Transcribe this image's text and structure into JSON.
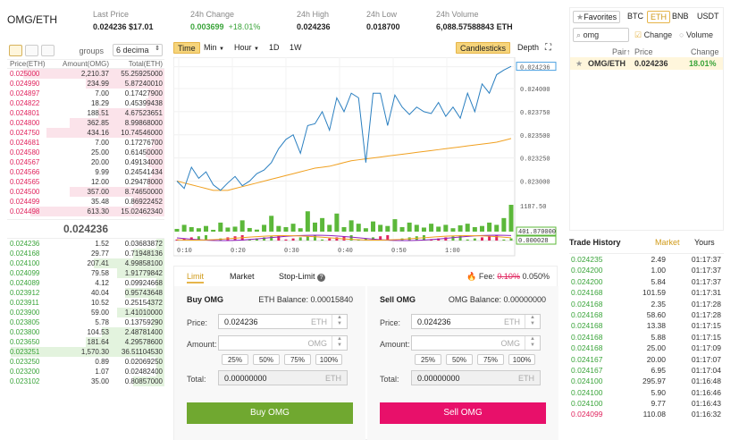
{
  "header": {
    "pair": "OMG/ETH",
    "last_price_label": "Last Price",
    "last_price": "0.024236 $17.01",
    "change_label": "24h Change",
    "change_value": "0.003699",
    "change_pct": "+18.01%",
    "high_label": "24h High",
    "high_value": "0.024236",
    "low_label": "24h Low",
    "low_value": "0.018700",
    "volume_label": "24h Volume",
    "volume_value": "6,088.57588843 ETH"
  },
  "orderbook": {
    "groups_label": "groups",
    "decimals_value": "6 decima",
    "col_price": "Price(ETH)",
    "col_amount": "Amount(OMG)",
    "col_total": "Total(ETH)",
    "asks": [
      [
        "0.025000",
        "2,210.37",
        "55.25925000"
      ],
      [
        "0.024990",
        "234.99",
        "5.87240010"
      ],
      [
        "0.024897",
        "7.00",
        "0.17427900"
      ],
      [
        "0.024822",
        "18.29",
        "0.45399438"
      ],
      [
        "0.024801",
        "188.51",
        "4.67523651"
      ],
      [
        "0.024800",
        "362.85",
        "8.99868000"
      ],
      [
        "0.024750",
        "434.16",
        "10.74546000"
      ],
      [
        "0.024681",
        "7.00",
        "0.17276700"
      ],
      [
        "0.024580",
        "25.00",
        "0.61450000"
      ],
      [
        "0.024567",
        "20.00",
        "0.49134000"
      ],
      [
        "0.024566",
        "9.99",
        "0.24541434"
      ],
      [
        "0.024565",
        "12.00",
        "0.29478000"
      ],
      [
        "0.024500",
        "357.00",
        "8.74650000"
      ],
      [
        "0.024499",
        "35.48",
        "0.86922452"
      ],
      [
        "0.024498",
        "613.30",
        "15.02462340"
      ]
    ],
    "ask_fill": [
      0.9,
      0.5,
      0.1,
      0.12,
      0.42,
      0.6,
      0.75,
      0.08,
      0.12,
      0.1,
      0.08,
      0.1,
      0.6,
      0.2,
      0.85
    ],
    "last_price": "0.024236",
    "bids": [
      [
        "0.024236",
        "1.52",
        "0.03683872"
      ],
      [
        "0.024168",
        "29.77",
        "0.71948136"
      ],
      [
        "0.024100",
        "207.41",
        "4.99858100"
      ],
      [
        "0.024099",
        "79.58",
        "1.91779842"
      ],
      [
        "0.024089",
        "4.12",
        "0.09924668"
      ],
      [
        "0.023912",
        "40.04",
        "0.95743648"
      ],
      [
        "0.023911",
        "10.52",
        "0.25154372"
      ],
      [
        "0.023900",
        "59.00",
        "1.41010000"
      ],
      [
        "0.023805",
        "5.78",
        "0.13759290"
      ],
      [
        "0.023800",
        "104.53",
        "2.48781400"
      ],
      [
        "0.023650",
        "181.64",
        "4.29578600"
      ],
      [
        "0.023251",
        "1,570.30",
        "36.51104530"
      ],
      [
        "0.023250",
        "0.89",
        "0.02069250"
      ],
      [
        "0.023200",
        "1.07",
        "0.02482400"
      ],
      [
        "0.023102",
        "35.00",
        "0.80857000"
      ]
    ],
    "bid_fill": [
      0.05,
      0.2,
      0.45,
      0.3,
      0.05,
      0.25,
      0.1,
      0.3,
      0.08,
      0.4,
      0.5,
      0.98,
      0.05,
      0.05,
      0.2
    ]
  },
  "chart": {
    "tabs": [
      "Time",
      "Min",
      "Hour",
      "1D",
      "1W"
    ],
    "view_candles": "Candlesticks",
    "view_depth": "Depth",
    "price_ticks": [
      "0.024236",
      "0.024000",
      "0.023750",
      "0.023500",
      "0.023250",
      "0.023000"
    ],
    "volume_tick": "1187.50",
    "volume_current": "401.870000",
    "macd_current": "0.000028",
    "time_ticks": [
      "0:10",
      "0:20",
      "0:30",
      "0:40",
      "0:50",
      "1:00"
    ],
    "price_series": [
      0.023,
      0.02292,
      0.02315,
      0.02303,
      0.0231,
      0.02296,
      0.0229,
      0.02298,
      0.02305,
      0.02295,
      0.023,
      0.02308,
      0.02312,
      0.0232,
      0.02335,
      0.02345,
      0.0235,
      0.0233,
      0.0236,
      0.02362,
      0.02375,
      0.02355,
      0.0239,
      0.02375,
      0.02395,
      0.0239,
      0.0232,
      0.02395,
      0.02395,
      0.0236,
      0.02393,
      0.0238,
      0.02372,
      0.0238,
      0.02375,
      0.02373,
      0.02385,
      0.0237,
      0.0238,
      0.02368,
      0.02395,
      0.02375,
      0.02405,
      0.02395,
      0.02415,
      0.0242,
      0.02424
    ],
    "avg_series": [
      0.023,
      0.02298,
      0.02296,
      0.02294,
      0.02292,
      0.0229,
      0.0229,
      0.0229,
      0.02292,
      0.02294,
      0.02296,
      0.02298,
      0.023,
      0.02302,
      0.02304,
      0.02306,
      0.02308,
      0.0231,
      0.02312,
      0.02314,
      0.02315,
      0.02316,
      0.02318,
      0.0232,
      0.02322,
      0.02323,
      0.02324,
      0.02325,
      0.02326,
      0.02327,
      0.02328,
      0.02329,
      0.0233,
      0.02331,
      0.02332,
      0.02333,
      0.02334,
      0.02335,
      0.02336,
      0.02337,
      0.02338,
      0.02339,
      0.0234,
      0.02341,
      0.02342,
      0.02344,
      0.02346
    ],
    "volumes": [
      120,
      300,
      200,
      150,
      250,
      80,
      400,
      180,
      220,
      500,
      160,
      90,
      300,
      700,
      250,
      200,
      350,
      150,
      900,
      400,
      600,
      300,
      800,
      200,
      500,
      350,
      150,
      450,
      300,
      250,
      550,
      200,
      400,
      300,
      180,
      350,
      220,
      300,
      150,
      280,
      350,
      200,
      250,
      400,
      300,
      600,
      1187
    ]
  },
  "trade": {
    "tab_limit": "Limit",
    "tab_market": "Market",
    "tab_stoplimit": "Stop-Limit",
    "fee_label": "Fee:",
    "fee_old": "0.10%",
    "fee_new": "0.050%",
    "buy_title": "Buy OMG",
    "buy_balance": "ETH Balance: 0.00015840",
    "sell_title": "Sell OMG",
    "sell_balance": "OMG Balance: 0.00000000",
    "price_label": "Price:",
    "amount_label": "Amount:",
    "total_label": "Total:",
    "buy_price": "0.024236",
    "sell_price": "0.024236",
    "unit_eth": "ETH",
    "unit_omg": "OMG",
    "buy_total": "0.00000000",
    "sell_total": "0.00000000",
    "pcts": [
      "25%",
      "50%",
      "75%",
      "100%"
    ],
    "buy_button": "Buy OMG",
    "sell_button": "Sell OMG"
  },
  "markets": {
    "favorites": "Favorites",
    "tabs": [
      "BTC",
      "ETH",
      "BNB",
      "USDT"
    ],
    "search_value": "omg",
    "change_label": "Change",
    "volume_label": "Volume",
    "col_pair": "Pair",
    "col_price": "Price",
    "col_change": "Change",
    "row_pair": "OMG/ETH",
    "row_price": "0.024236",
    "row_change": "18.01%"
  },
  "history": {
    "title": "Trade History",
    "tab_market": "Market",
    "tab_yours": "Yours",
    "rows": [
      [
        "0.024235",
        "2.49",
        "01:17:37",
        "g"
      ],
      [
        "0.024200",
        "1.00",
        "01:17:37",
        "g"
      ],
      [
        "0.024200",
        "5.84",
        "01:17:37",
        "g"
      ],
      [
        "0.024168",
        "101.59",
        "01:17:31",
        "g"
      ],
      [
        "0.024168",
        "2.35",
        "01:17:28",
        "g"
      ],
      [
        "0.024168",
        "58.60",
        "01:17:28",
        "g"
      ],
      [
        "0.024168",
        "13.38",
        "01:17:15",
        "g"
      ],
      [
        "0.024168",
        "5.88",
        "01:17:15",
        "g"
      ],
      [
        "0.024168",
        "25.00",
        "01:17:09",
        "g"
      ],
      [
        "0.024167",
        "20.00",
        "01:17:07",
        "g"
      ],
      [
        "0.024167",
        "6.95",
        "01:17:04",
        "g"
      ],
      [
        "0.024100",
        "295.97",
        "01:16:48",
        "g"
      ],
      [
        "0.024100",
        "5.90",
        "01:16:46",
        "g"
      ],
      [
        "0.024100",
        "9.77",
        "01:16:43",
        "g"
      ],
      [
        "0.024099",
        "110.08",
        "01:16:32",
        "r"
      ]
    ]
  },
  "colors": {
    "green": "#3aa43a",
    "red": "#e0245e",
    "accent": "#e6b54a"
  }
}
